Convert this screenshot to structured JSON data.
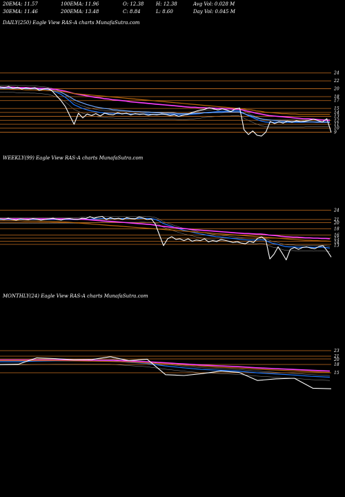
{
  "header": {
    "row1": [
      {
        "label": "20EMA:",
        "value": "11.57"
      },
      {
        "label": "100EMA:",
        "value": "11.96"
      },
      {
        "label": "O:",
        "value": "12.38"
      },
      {
        "label": "H:",
        "value": "12.38"
      },
      {
        "label": "Avg Vol:",
        "value": "0.028 M"
      }
    ],
    "row2": [
      {
        "label": "30EMA:",
        "value": "11.46"
      },
      {
        "label": "200EMA:",
        "value": "13.48"
      },
      {
        "label": "C:",
        "value": "8.84"
      },
      {
        "label": "L:",
        "value": "8.60"
      },
      {
        "label": "Day Vol:",
        "value": "0.045 M"
      }
    ]
  },
  "colors": {
    "background": "#000000",
    "price": "#ffffff",
    "ema20": "#1e78ff",
    "ema30": "#6fa8ff",
    "ema100": "#ff40ff",
    "ema200": "#b8660a",
    "level": "#c87020",
    "grey": "#9a9a9a"
  },
  "chart_data": [
    {
      "type": "line",
      "title": "DAILY(250) Eagle  View  RAS-A charts MunafaSutra.com",
      "levels": [
        24,
        22,
        20,
        18,
        17,
        15,
        14,
        13,
        12,
        11,
        10,
        9
      ],
      "ytick_labels": [
        "24",
        "22",
        "20",
        "18",
        "17",
        "15",
        "14",
        "13",
        "12",
        "11",
        "10",
        "9"
      ],
      "ylim": [
        7.5,
        25
      ],
      "series": [
        {
          "key": "price",
          "color": "#ffffff",
          "values": [
            20.5,
            20.3,
            20.6,
            20.1,
            20.4,
            19.9,
            20.2,
            20.0,
            20.3,
            19.6,
            19.9,
            20.1,
            19.4,
            18.2,
            17.0,
            15.5,
            13.2,
            11.0,
            13.8,
            12.6,
            13.6,
            13.2,
            13.7,
            13.1,
            13.8,
            13.5,
            13.4,
            13.9,
            13.6,
            13.8,
            13.4,
            13.7,
            13.5,
            13.6,
            13.3,
            13.5,
            13.4,
            13.6,
            13.5,
            13.2,
            13.4,
            13.0,
            13.3,
            13.5,
            13.9,
            14.3,
            14.6,
            14.8,
            15.2,
            14.9,
            14.6,
            14.9,
            14.6,
            14.2,
            14.9,
            15.1,
            9.6,
            8.4,
            9.3,
            8.2,
            8.0,
            9.0,
            11.7,
            11.2,
            11.6,
            11.3,
            11.8,
            11.5,
            11.9,
            11.7,
            11.8,
            12.0,
            12.3,
            11.9,
            11.6,
            12.4,
            8.9
          ]
        },
        {
          "key": "ema20",
          "color": "#1e78ff",
          "values": [
            20.3,
            20.3,
            20.3,
            20.3,
            20.2,
            20.2,
            20.2,
            20.1,
            20.1,
            20.0,
            19.9,
            19.8,
            19.5,
            19.1,
            18.6,
            17.9,
            17.0,
            16.0,
            15.5,
            15.0,
            14.7,
            14.4,
            14.2,
            14.0,
            13.9,
            13.8,
            13.8,
            13.7,
            13.7,
            13.7,
            13.6,
            13.6,
            13.6,
            13.6,
            13.6,
            13.5,
            13.5,
            13.5,
            13.5,
            13.5,
            13.5,
            13.4,
            13.4,
            13.4,
            13.5,
            13.6,
            13.7,
            13.9,
            14.0,
            14.1,
            14.2,
            14.3,
            14.3,
            14.3,
            14.4,
            14.4,
            13.9,
            13.3,
            12.8,
            12.3,
            11.9,
            11.6,
            11.5,
            11.5,
            11.5,
            11.5,
            11.5,
            11.5,
            11.5,
            11.5,
            11.5,
            11.6,
            11.6,
            11.6,
            11.6,
            11.6,
            11.6
          ]
        },
        {
          "key": "ema30",
          "color": "#6fa8ff",
          "values": [
            20.1,
            20.1,
            20.1,
            20.1,
            20.1,
            20.1,
            20.0,
            20.0,
            20.0,
            19.9,
            19.9,
            19.8,
            19.6,
            19.4,
            19.1,
            18.6,
            18.0,
            17.3,
            16.8,
            16.4,
            16.0,
            15.7,
            15.4,
            15.2,
            15.0,
            14.9,
            14.7,
            14.6,
            14.5,
            14.4,
            14.3,
            14.2,
            14.2,
            14.1,
            14.0,
            14.0,
            13.9,
            13.9,
            13.8,
            13.8,
            13.8,
            13.7,
            13.7,
            13.7,
            13.7,
            13.8,
            13.8,
            13.9,
            13.9,
            14.0,
            14.0,
            14.0,
            14.1,
            14.1,
            14.1,
            14.1,
            13.8,
            13.4,
            13.1,
            12.7,
            12.4,
            12.2,
            12.1,
            12.0,
            11.9,
            11.8,
            11.8,
            11.7,
            11.7,
            11.6,
            11.6,
            11.6,
            11.6,
            11.5,
            11.5,
            11.5,
            11.5
          ]
        },
        {
          "key": "ema100",
          "color": "#ff40ff",
          "values": [
            20.4,
            20.4,
            20.4,
            20.4,
            20.3,
            20.3,
            20.3,
            20.2,
            20.2,
            20.1,
            20.1,
            20.0,
            19.9,
            19.8,
            19.6,
            19.4,
            19.1,
            18.8,
            18.6,
            18.4,
            18.2,
            18.0,
            17.8,
            17.7,
            17.5,
            17.4,
            17.2,
            17.1,
            17.0,
            16.9,
            16.7,
            16.6,
            16.5,
            16.4,
            16.3,
            16.2,
            16.1,
            16.0,
            15.9,
            15.8,
            15.7,
            15.6,
            15.5,
            15.4,
            15.3,
            15.3,
            15.2,
            15.2,
            15.1,
            15.1,
            15.0,
            15.0,
            14.9,
            14.9,
            14.8,
            14.8,
            14.6,
            14.3,
            14.1,
            13.8,
            13.6,
            13.4,
            13.2,
            13.1,
            13.0,
            12.9,
            12.8,
            12.7,
            12.6,
            12.5,
            12.4,
            12.4,
            12.3,
            12.2,
            12.1,
            12.0,
            12.0
          ]
        },
        {
          "key": "ema200",
          "color": "#b8660a",
          "values": [
            19.9,
            19.9,
            19.9,
            19.8,
            19.8,
            19.8,
            19.7,
            19.7,
            19.7,
            19.6,
            19.6,
            19.5,
            19.5,
            19.4,
            19.3,
            19.2,
            19.0,
            18.8,
            18.7,
            18.6,
            18.5,
            18.4,
            18.3,
            18.2,
            18.1,
            18.0,
            17.9,
            17.8,
            17.7,
            17.6,
            17.5,
            17.4,
            17.3,
            17.2,
            17.1,
            17.0,
            16.9,
            16.8,
            16.7,
            16.6,
            16.5,
            16.4,
            16.3,
            16.2,
            16.1,
            16.0,
            15.9,
            15.8,
            15.7,
            15.6,
            15.5,
            15.4,
            15.3,
            15.2,
            15.1,
            15.0,
            14.9,
            14.7,
            14.6,
            14.4,
            14.3,
            14.1,
            14.0,
            13.9,
            13.8,
            13.7,
            13.7,
            13.6,
            13.6,
            13.5,
            13.5,
            13.5,
            13.5,
            13.5,
            13.5,
            13.5,
            13.5
          ]
        }
      ]
    },
    {
      "type": "line",
      "title": "WEEKLY(99) Eagle  View  RAS-A charts MunafaSutra.com",
      "levels": [
        24,
        21,
        20,
        18,
        16,
        15,
        14,
        13
      ],
      "ytick_labels": [
        "24",
        "21",
        "20",
        "18",
        "16",
        "15",
        "14",
        "13"
      ],
      "ylim": [
        5,
        25
      ],
      "series": [
        {
          "key": "price",
          "color": "#ffffff",
          "values": [
            21.2,
            21.0,
            21.4,
            21.0,
            20.8,
            21.2,
            21.0,
            20.9,
            21.3,
            21.1,
            20.8,
            21.0,
            21.2,
            21.4,
            21.0,
            20.8,
            21.2,
            21.3,
            21.1,
            21.0,
            21.4,
            21.3,
            21.9,
            21.4,
            21.8,
            22.0,
            21.0,
            21.6,
            21.2,
            21.4,
            21.0,
            21.6,
            21.3,
            21.2,
            21.8,
            21.5,
            21.0,
            21.2,
            19.5,
            16.0,
            12.6,
            14.8,
            15.5,
            14.6,
            14.8,
            14.2,
            14.8,
            14.0,
            14.4,
            14.2,
            14.8,
            13.8,
            14.2,
            13.9,
            14.6,
            14.3,
            14.0,
            13.6,
            13.9,
            13.4,
            13.2,
            14.0,
            13.6,
            14.9,
            15.4,
            14.4,
            8.3,
            9.8,
            12.2,
            10.2,
            8.0,
            11.4,
            12.0,
            11.4,
            12.0,
            12.2,
            11.8,
            11.6,
            12.3,
            12.6,
            10.9,
            8.9
          ]
        },
        {
          "key": "ema20",
          "color": "#1e78ff",
          "values": [
            21.0,
            21.0,
            21.0,
            21.0,
            21.0,
            21.0,
            21.0,
            21.0,
            21.0,
            21.0,
            21.0,
            21.0,
            21.0,
            21.0,
            21.0,
            21.0,
            21.0,
            21.0,
            21.0,
            21.0,
            21.1,
            21.1,
            21.1,
            21.2,
            21.2,
            21.3,
            21.3,
            21.3,
            21.3,
            21.3,
            21.3,
            21.3,
            21.3,
            21.3,
            21.3,
            21.4,
            21.3,
            21.3,
            21.1,
            20.6,
            19.8,
            19.3,
            18.9,
            18.4,
            18.0,
            17.6,
            17.3,
            17.0,
            16.7,
            16.4,
            16.2,
            15.9,
            15.7,
            15.5,
            15.4,
            15.2,
            15.1,
            14.9,
            14.8,
            14.6,
            14.5,
            14.4,
            14.4,
            14.4,
            14.5,
            14.4,
            13.8,
            13.3,
            13.1,
            12.7,
            12.3,
            12.2,
            12.2,
            12.1,
            12.1,
            12.1,
            12.1,
            12.0,
            12.1,
            12.1,
            12.0,
            11.8
          ]
        },
        {
          "key": "ema100",
          "color": "#ff40ff",
          "values": [
            21.2,
            21.2,
            21.2,
            21.2,
            21.2,
            21.2,
            21.2,
            21.2,
            21.2,
            21.2,
            21.2,
            21.2,
            21.2,
            21.2,
            21.2,
            21.2,
            21.2,
            21.2,
            21.1,
            21.1,
            21.1,
            21.0,
            20.9,
            20.8,
            20.7,
            20.6,
            20.5,
            20.4,
            20.3,
            20.2,
            20.1,
            20.0,
            19.9,
            19.8,
            19.7,
            19.6,
            19.5,
            19.4,
            19.2,
            19.0,
            18.8,
            18.7,
            18.5,
            18.4,
            18.2,
            18.1,
            18.0,
            17.8,
            17.7,
            17.6,
            17.5,
            17.4,
            17.3,
            17.2,
            17.1,
            17.0,
            16.9,
            16.8,
            16.7,
            16.6,
            16.5,
            16.5,
            16.4,
            16.3,
            16.3,
            16.2,
            16.0,
            15.9,
            15.8,
            15.6,
            15.5,
            15.4,
            15.3,
            15.3,
            15.2,
            15.1,
            15.1,
            15.0,
            15.0,
            14.9,
            14.9,
            14.8
          ]
        },
        {
          "key": "ema200",
          "color": "#b8660a",
          "values": [
            20.6,
            20.6,
            20.6,
            20.6,
            20.6,
            20.6,
            20.5,
            20.5,
            20.5,
            20.5,
            20.4,
            20.4,
            20.4,
            20.3,
            20.3,
            20.2,
            20.2,
            20.1,
            20.0,
            19.9,
            19.8,
            19.7,
            19.6,
            19.5,
            19.4,
            19.3,
            19.2,
            19.1,
            19.0,
            18.9,
            18.8,
            18.7,
            18.6,
            18.5,
            18.4,
            18.3,
            18.2,
            18.1,
            18.0,
            17.9,
            17.8,
            17.7,
            17.6,
            17.5,
            17.4,
            17.3,
            17.2,
            17.1,
            17.0,
            16.9,
            16.8,
            16.7,
            16.6,
            16.5,
            16.4,
            16.3,
            16.2,
            16.1,
            16.0,
            15.9,
            15.8,
            15.7,
            15.6,
            15.5,
            15.4,
            15.3,
            15.2,
            15.1,
            15.0,
            14.9,
            14.8,
            14.7,
            14.6,
            14.5,
            14.4,
            14.3,
            14.3,
            14.2,
            14.2,
            14.1,
            14.1,
            14.0
          ]
        }
      ]
    },
    {
      "type": "line",
      "title": "MONTHLY(24) Eagle  View  RAS-A charts MunafaSutra.com",
      "levels": [
        23,
        21,
        20,
        18,
        15
      ],
      "ytick_labels": [
        "23",
        "21",
        "20",
        "18",
        "15"
      ],
      "ylim": [
        0,
        25
      ],
      "series": [
        {
          "key": "price",
          "color": "#ffffff",
          "values": [
            18.0,
            18.1,
            20.4,
            20.1,
            19.7,
            19.8,
            20.8,
            19.4,
            19.9,
            14.3,
            14.0,
            14.7,
            15.6,
            15.1,
            12.2,
            12.8,
            13.0,
            9.4,
            9.2
          ]
        },
        {
          "key": "ema20",
          "color": "#1e78ff",
          "values": [
            19.0,
            19.0,
            19.2,
            19.3,
            19.3,
            19.3,
            19.3,
            18.8,
            18.4,
            17.5,
            16.8,
            16.2,
            15.9,
            15.6,
            15.0,
            14.6,
            14.2,
            13.7,
            13.4
          ]
        },
        {
          "key": "ema100",
          "color": "#ff40ff",
          "values": [
            19.6,
            19.6,
            19.6,
            19.6,
            19.6,
            19.5,
            19.5,
            19.3,
            19.0,
            18.6,
            18.2,
            17.8,
            17.5,
            17.2,
            16.8,
            16.5,
            16.2,
            15.9,
            15.6
          ]
        },
        {
          "key": "ema200",
          "color": "#b8660a",
          "values": [
            19.4,
            19.4,
            19.4,
            19.4,
            19.3,
            19.2,
            19.1,
            18.9,
            18.6,
            18.2,
            17.8,
            17.4,
            17.0,
            16.7,
            16.3,
            16.0,
            15.7,
            15.4,
            15.1
          ]
        }
      ]
    }
  ]
}
